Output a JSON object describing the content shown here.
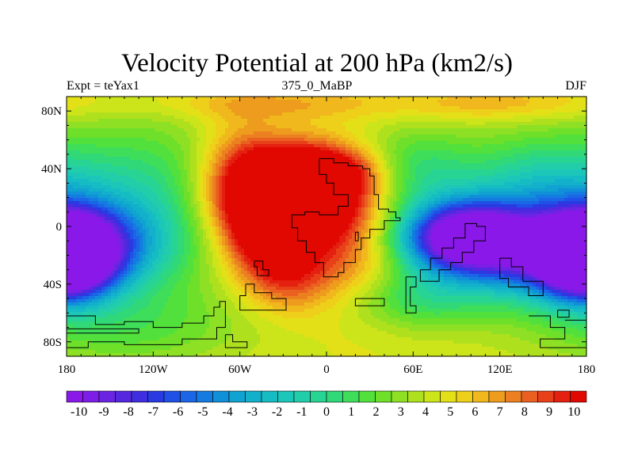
{
  "chart_data": {
    "type": "heatmap",
    "title": "Velocity Potential at 200 hPa (km2/s)",
    "subtitle_left": "Expt = teYax1",
    "subtitle_center": "375_0_MaBP",
    "subtitle_right": "DJF",
    "x_range": [
      -180,
      180
    ],
    "y_range": [
      -90,
      90
    ],
    "x_ticks": [
      {
        "value": -180,
        "label": "180"
      },
      {
        "value": -120,
        "label": "120W"
      },
      {
        "value": -60,
        "label": "60W"
      },
      {
        "value": 0,
        "label": "0"
      },
      {
        "value": 60,
        "label": "60E"
      },
      {
        "value": 120,
        "label": "120E"
      },
      {
        "value": 180,
        "label": "180"
      }
    ],
    "y_ticks": [
      {
        "value": 80,
        "label": "80N"
      },
      {
        "value": 40,
        "label": "40N"
      },
      {
        "value": 0,
        "label": "0"
      },
      {
        "value": -40,
        "label": "40S"
      },
      {
        "value": -80,
        "label": "80S"
      }
    ],
    "colorbar": {
      "min": -10.5,
      "max": 10.5,
      "step": 0.5,
      "labels": [
        "-10",
        "-9",
        "-8",
        "-7",
        "-6",
        "-5",
        "-4",
        "-3",
        "-2",
        "-1",
        "0",
        "1",
        "2",
        "3",
        "4",
        "5",
        "6",
        "7",
        "8",
        "9",
        "10"
      ],
      "colors": [
        "#8a18e8",
        "#7d1ee6",
        "#6a25e2",
        "#5528e0",
        "#3f2ee0",
        "#2a3ae2",
        "#2050e6",
        "#1a66e6",
        "#147ce0",
        "#1090d8",
        "#10a2d0",
        "#12b0ca",
        "#16bcc4",
        "#1cc6b8",
        "#22ceaa",
        "#28d494",
        "#30d878",
        "#3ede5a",
        "#52e03c",
        "#6ee02a",
        "#8ee024",
        "#aee01e",
        "#cce41a",
        "#e4e018",
        "#eed01a",
        "#f0b81c",
        "#ee9c1e",
        "#ec8020",
        "#ea6020",
        "#e84018",
        "#e42010",
        "#e00800"
      ]
    },
    "field": {
      "background": 1.0,
      "centers": [
        {
          "lon": -25,
          "lat": 20,
          "amp": 10.5,
          "sx": 35,
          "sy": 22
        },
        {
          "lon": -15,
          "lat": 42,
          "amp": 2.0,
          "sx": 25,
          "sy": 12
        },
        {
          "lon": 20,
          "lat": 38,
          "amp": 2.0,
          "sx": 20,
          "sy": 12
        },
        {
          "lon": -60,
          "lat": 45,
          "amp": 2.0,
          "sx": 20,
          "sy": 25
        },
        {
          "lon": -45,
          "lat": -10,
          "amp": 3.5,
          "sx": 20,
          "sy": 20
        },
        {
          "lon": -25,
          "lat": -35,
          "amp": 3.0,
          "sx": 22,
          "sy": 18
        },
        {
          "lon": 20,
          "lat": -30,
          "amp": 2.0,
          "sx": 25,
          "sy": 25
        },
        {
          "lon": -40,
          "lat": 85,
          "amp": 1.5,
          "sx": 60,
          "sy": 8
        },
        {
          "lon": 120,
          "lat": 85,
          "amp": 1.5,
          "sx": 50,
          "sy": 8
        },
        {
          "lon": 95,
          "lat": -8,
          "amp": -13.0,
          "sx": 32,
          "sy": 18
        },
        {
          "lon": 150,
          "lat": -20,
          "amp": -7.0,
          "sx": 35,
          "sy": 22
        },
        {
          "lon": 178,
          "lat": -20,
          "amp": -6.0,
          "sx": 22,
          "sy": 20
        },
        {
          "lon": -178,
          "lat": -20,
          "amp": -7.5,
          "sx": 22,
          "sy": 20
        },
        {
          "lon": -150,
          "lat": -15,
          "amp": -4.0,
          "sx": 30,
          "sy": 22
        },
        {
          "lon": -120,
          "lat": 15,
          "amp": -3.5,
          "sx": 45,
          "sy": 40
        },
        {
          "lon": 60,
          "lat": 40,
          "amp": -3.0,
          "sx": 30,
          "sy": 20
        },
        {
          "lon": 60,
          "lat": -50,
          "amp": -3.0,
          "sx": 40,
          "sy": 15
        },
        {
          "lon": 150,
          "lat": 30,
          "amp": -4.0,
          "sx": 40,
          "sy": 25
        },
        {
          "lon": -140,
          "lat": -70,
          "amp": -2.0,
          "sx": 60,
          "sy": 20
        }
      ]
    },
    "coastlines": [
      [
        [
          -5,
          47
        ],
        [
          5,
          47
        ],
        [
          5,
          44
        ],
        [
          15,
          44
        ],
        [
          15,
          42
        ],
        [
          25,
          42
        ],
        [
          25,
          40
        ],
        [
          30,
          40
        ],
        [
          30,
          35
        ],
        [
          33,
          35
        ],
        [
          33,
          22
        ],
        [
          36,
          22
        ],
        [
          36,
          12
        ],
        [
          43,
          12
        ],
        [
          43,
          10
        ],
        [
          48,
          10
        ],
        [
          48,
          6
        ],
        [
          51,
          6
        ],
        [
          51,
          4
        ],
        [
          40,
          4
        ],
        [
          40,
          -2
        ],
        [
          30,
          -2
        ],
        [
          30,
          -8
        ],
        [
          24,
          -8
        ],
        [
          24,
          -16
        ],
        [
          20,
          -16
        ],
        [
          20,
          -25
        ],
        [
          12,
          -25
        ],
        [
          12,
          -32
        ],
        [
          8,
          -32
        ],
        [
          8,
          -35
        ],
        [
          -2,
          -35
        ],
        [
          -2,
          -25
        ],
        [
          -8,
          -25
        ],
        [
          -8,
          -18
        ],
        [
          -14,
          -18
        ],
        [
          -14,
          -10
        ],
        [
          -20,
          -10
        ],
        [
          -20,
          -1
        ],
        [
          -24,
          -1
        ],
        [
          -24,
          8
        ],
        [
          -15,
          8
        ],
        [
          -15,
          10
        ],
        [
          -5,
          10
        ],
        [
          -5,
          8
        ],
        [
          8,
          8
        ],
        [
          8,
          14
        ],
        [
          15,
          14
        ],
        [
          15,
          22
        ],
        [
          5,
          22
        ],
        [
          5,
          30
        ],
        [
          0,
          30
        ],
        [
          0,
          36
        ],
        [
          -5,
          36
        ],
        [
          -5,
          47
        ]
      ],
      [
        [
          -50,
          -24
        ],
        [
          -44,
          -24
        ],
        [
          -44,
          -30
        ],
        [
          -40,
          -30
        ],
        [
          -40,
          -34
        ],
        [
          -48,
          -34
        ],
        [
          -48,
          -28
        ],
        [
          -50,
          -28
        ],
        [
          -50,
          -24
        ]
      ],
      [
        [
          20,
          -4
        ],
        [
          22,
          -4
        ],
        [
          22,
          -10
        ],
        [
          20,
          -10
        ],
        [
          20,
          -4
        ]
      ],
      [
        [
          55,
          -35
        ],
        [
          62,
          -35
        ],
        [
          62,
          -42
        ],
        [
          58,
          -42
        ],
        [
          58,
          -55
        ],
        [
          62,
          -55
        ],
        [
          62,
          -60
        ],
        [
          55,
          -60
        ],
        [
          55,
          -35
        ]
      ],
      [
        [
          65,
          -30
        ],
        [
          72,
          -30
        ],
        [
          72,
          -22
        ],
        [
          80,
          -22
        ],
        [
          80,
          -15
        ],
        [
          88,
          -15
        ],
        [
          88,
          -8
        ],
        [
          96,
          -8
        ],
        [
          96,
          2
        ],
        [
          104,
          2
        ],
        [
          104,
          0
        ],
        [
          110,
          0
        ],
        [
          110,
          -10
        ],
        [
          102,
          -10
        ],
        [
          102,
          -18
        ],
        [
          94,
          -18
        ],
        [
          94,
          -25
        ],
        [
          86,
          -25
        ],
        [
          86,
          -30
        ],
        [
          78,
          -30
        ],
        [
          78,
          -38
        ],
        [
          65,
          -38
        ],
        [
          65,
          -30
        ]
      ],
      [
        [
          120,
          -22
        ],
        [
          128,
          -22
        ],
        [
          128,
          -28
        ],
        [
          136,
          -28
        ],
        [
          136,
          -38
        ],
        [
          150,
          -38
        ],
        [
          150,
          -48
        ],
        [
          140,
          -48
        ],
        [
          140,
          -42
        ],
        [
          126,
          -42
        ],
        [
          126,
          -36
        ],
        [
          120,
          -36
        ],
        [
          120,
          -22
        ]
      ],
      [
        [
          -180,
          -62
        ],
        [
          -160,
          -62
        ],
        [
          -160,
          -68
        ],
        [
          -140,
          -68
        ],
        [
          -140,
          -66
        ],
        [
          -120,
          -66
        ],
        [
          -120,
          -70
        ],
        [
          -100,
          -70
        ],
        [
          -100,
          -67
        ],
        [
          -85,
          -67
        ],
        [
          -85,
          -62
        ],
        [
          -78,
          -62
        ],
        [
          -78,
          -56
        ],
        [
          -74,
          -56
        ],
        [
          -74,
          -52
        ],
        [
          -70,
          -52
        ],
        [
          -70,
          -70
        ],
        [
          -76,
          -70
        ],
        [
          -76,
          -78
        ],
        [
          -100,
          -78
        ],
        [
          -100,
          -82
        ],
        [
          -140,
          -82
        ],
        [
          -140,
          -80
        ],
        [
          -165,
          -80
        ],
        [
          -165,
          -84
        ],
        [
          -180,
          -84
        ]
      ],
      [
        [
          -180,
          -71
        ],
        [
          -130,
          -71
        ],
        [
          -130,
          -74
        ],
        [
          -180,
          -74
        ]
      ],
      [
        [
          -56,
          -40
        ],
        [
          -50,
          -40
        ],
        [
          -50,
          -46
        ],
        [
          -38,
          -46
        ],
        [
          -38,
          -50
        ],
        [
          -28,
          -50
        ],
        [
          -28,
          -58
        ],
        [
          -60,
          -58
        ],
        [
          -60,
          -48
        ],
        [
          -56,
          -48
        ],
        [
          -56,
          -40
        ]
      ],
      [
        [
          -70,
          -75
        ],
        [
          -65,
          -75
        ],
        [
          -65,
          -80
        ],
        [
          -55,
          -80
        ],
        [
          -55,
          -84
        ],
        [
          -70,
          -84
        ],
        [
          -70,
          -75
        ]
      ],
      [
        [
          20,
          -50
        ],
        [
          40,
          -50
        ],
        [
          40,
          -55
        ],
        [
          20,
          -55
        ],
        [
          20,
          -50
        ]
      ],
      [
        [
          140,
          -62
        ],
        [
          155,
          -62
        ],
        [
          155,
          -70
        ],
        [
          165,
          -70
        ],
        [
          165,
          -78
        ],
        [
          148,
          -78
        ],
        [
          148,
          -84
        ],
        [
          180,
          -84
        ]
      ],
      [
        [
          165,
          -65
        ],
        [
          180,
          -65
        ]
      ],
      [
        [
          160,
          -58
        ],
        [
          168,
          -58
        ],
        [
          168,
          -63
        ],
        [
          160,
          -63
        ],
        [
          160,
          -58
        ]
      ]
    ]
  }
}
